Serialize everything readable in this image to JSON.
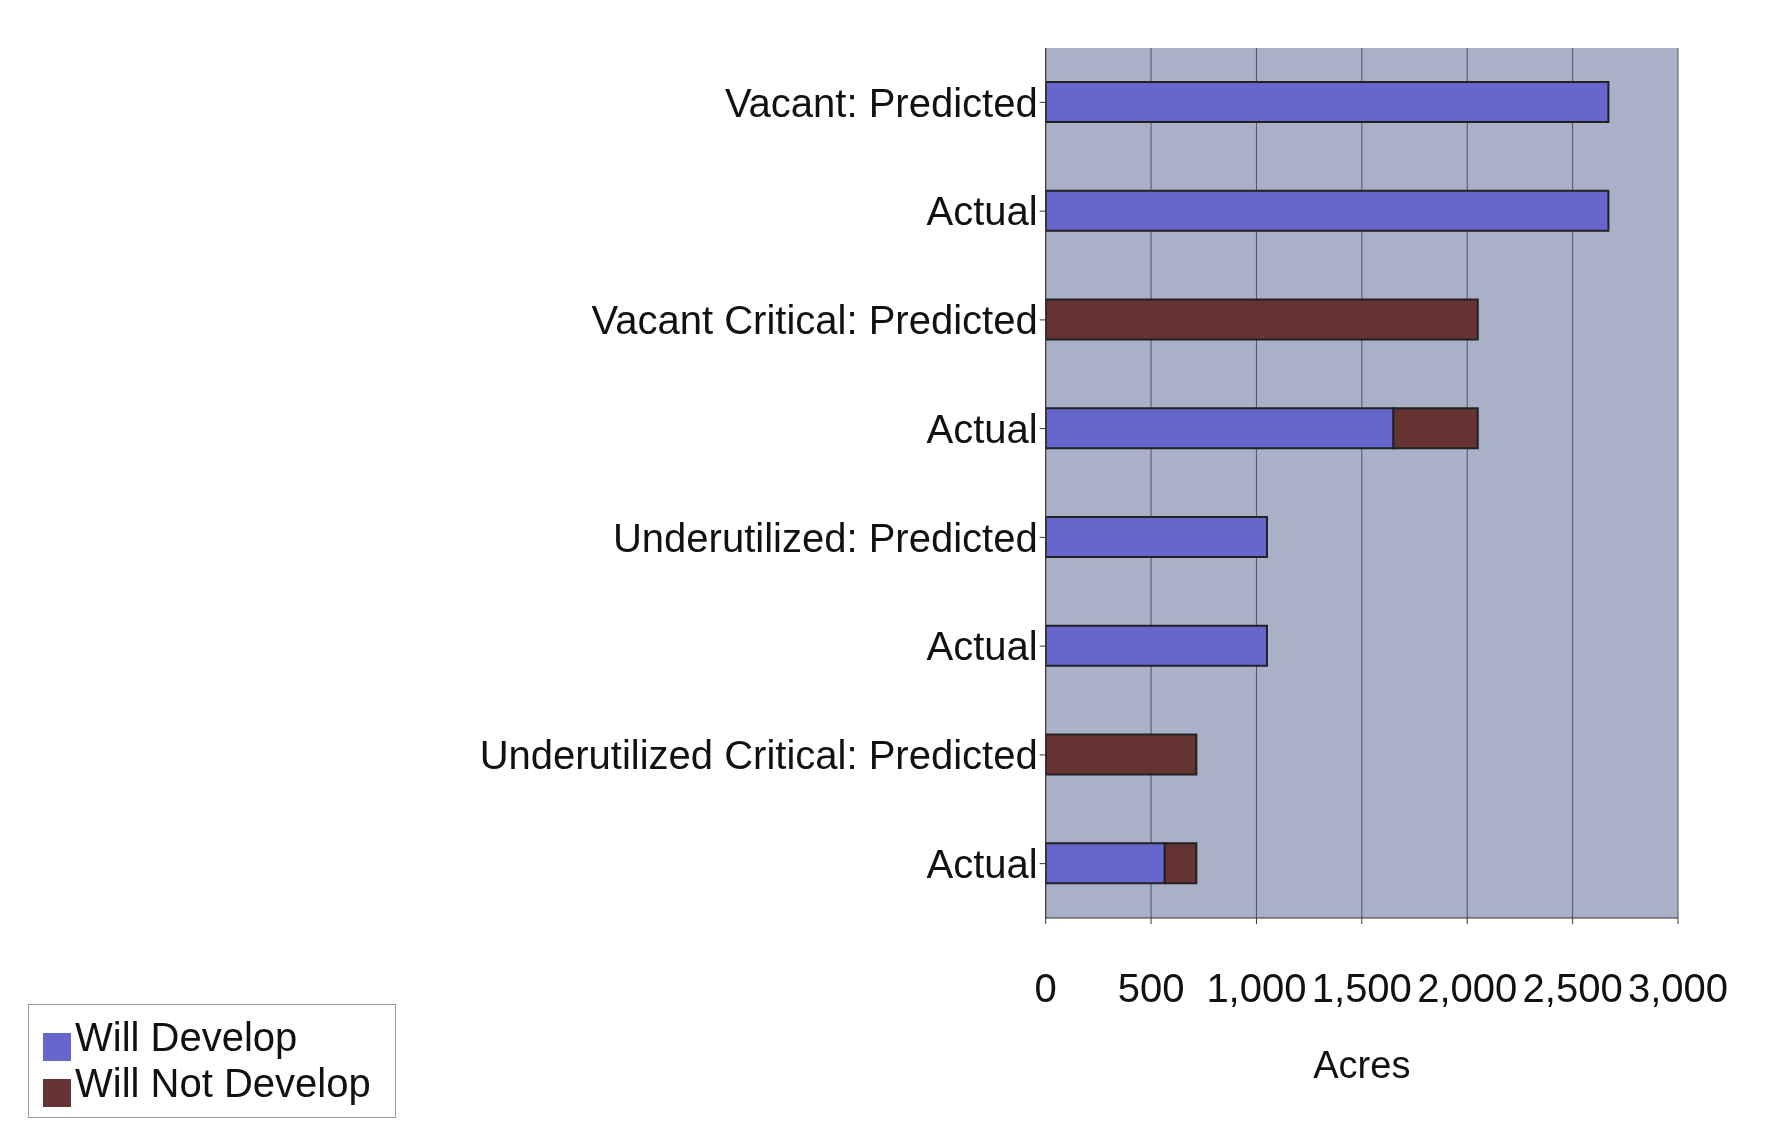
{
  "chart_data": {
    "type": "bar",
    "orientation": "horizontal",
    "stacked": true,
    "xlabel": "Acres",
    "categories": [
      "Vacant: Predicted",
      "Actual",
      "Vacant Critical: Predicted",
      "Actual",
      "Underutilized: Predicted",
      "Actual",
      "Underutilized Critical: Predicted",
      "Actual"
    ],
    "series": [
      {
        "name": "Will Develop",
        "color": "#6666cc",
        "values": [
          2670,
          2670,
          null,
          1650,
          1050,
          1050,
          null,
          565
        ]
      },
      {
        "name": "Will Not Develop",
        "color": "#663333",
        "values": [
          null,
          null,
          2050,
          400,
          null,
          null,
          715,
          150
        ]
      }
    ],
    "xlim": [
      0,
      3000
    ],
    "xticks": [
      {
        "value": 0,
        "label": "0"
      },
      {
        "value": 500,
        "label": "500"
      },
      {
        "value": 1000,
        "label": "1,000"
      },
      {
        "value": 1500,
        "label": "1,500"
      },
      {
        "value": 2000,
        "label": "2,000"
      },
      {
        "value": 2500,
        "label": "2,500"
      },
      {
        "value": 3000,
        "label": "3,000"
      }
    ],
    "grid": "x",
    "legend": "bottom left"
  }
}
